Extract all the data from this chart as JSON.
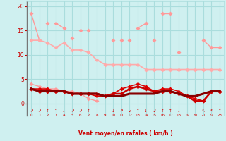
{
  "bg_color": "#cff0f0",
  "grid_color": "#aadddd",
  "xlabel": "Vent moyen/en rafales ( km/h )",
  "ylim": [
    0,
    21
  ],
  "xlim": [
    -0.5,
    23.5
  ],
  "yticks": [
    0,
    5,
    10,
    15,
    20
  ],
  "xticks": [
    0,
    1,
    2,
    3,
    4,
    5,
    6,
    7,
    8,
    9,
    10,
    11,
    12,
    13,
    14,
    15,
    16,
    17,
    18,
    19,
    20,
    21,
    22,
    23
  ],
  "series": [
    {
      "y": [
        18.5,
        13,
        null,
        16.5,
        15.5,
        null,
        15,
        null,
        null,
        null,
        13,
        null,
        13,
        null,
        null,
        13,
        null,
        null,
        10.5,
        null,
        null,
        13,
        11.5,
        11.5
      ],
      "color": "#ff9999",
      "lw": 1.0,
      "ms": 3,
      "marker": "D"
    },
    {
      "y": [
        null,
        null,
        16.5,
        null,
        null,
        13.5,
        null,
        15,
        null,
        null,
        null,
        null,
        null,
        15.5,
        16.5,
        null,
        18.5,
        18.5,
        null,
        null,
        null,
        null,
        null,
        null
      ],
      "color": "#ff9999",
      "lw": 1.0,
      "ms": 3,
      "marker": "D"
    },
    {
      "y": [
        null,
        null,
        null,
        null,
        null,
        null,
        null,
        null,
        null,
        null,
        null,
        13,
        null,
        null,
        null,
        null,
        null,
        null,
        null,
        null,
        null,
        null,
        null,
        null
      ],
      "color": "#ff9999",
      "lw": 1.0,
      "ms": 3,
      "marker": "D"
    },
    {
      "y": [
        13,
        13,
        12.5,
        11.5,
        12.5,
        11,
        11,
        10.5,
        9,
        8,
        8,
        8,
        8,
        8,
        7,
        7,
        7,
        7,
        7,
        7,
        7,
        7,
        7,
        7
      ],
      "color": "#ffaaaa",
      "lw": 1.2,
      "ms": 3,
      "marker": "D"
    },
    {
      "y": [
        4,
        3.5,
        3,
        3,
        2.5,
        2.5,
        2,
        1,
        0.5,
        null,
        null,
        null,
        null,
        null,
        null,
        null,
        null,
        null,
        null,
        null,
        null,
        null,
        null,
        null
      ],
      "color": "#ff9999",
      "lw": 1.0,
      "ms": 3,
      "marker": "D"
    },
    {
      "y": [
        3,
        3,
        3,
        2.5,
        2.5,
        2,
        2,
        2,
        1.5,
        1.5,
        2,
        3,
        3.5,
        4,
        3.5,
        2.5,
        3,
        3,
        2.5,
        1.5,
        1,
        0.5,
        2.5,
        2.5
      ],
      "color": "#dd0000",
      "lw": 1.2,
      "ms": 3,
      "marker": "D"
    },
    {
      "y": [
        3,
        2.5,
        2.5,
        2.5,
        2.5,
        2,
        2,
        2,
        2,
        1.5,
        2,
        2,
        3,
        3.5,
        3,
        2.5,
        2.5,
        2.5,
        2,
        1.5,
        0.5,
        0.5,
        2.5,
        2.5
      ],
      "color": "#cc0000",
      "lw": 1.8,
      "ms": 3,
      "marker": "D"
    },
    {
      "y": [
        3,
        2.5,
        2.5,
        2.5,
        2.5,
        2,
        2,
        2,
        2,
        1.5,
        1.5,
        1.5,
        2,
        2,
        2,
        2,
        2.5,
        2.5,
        2,
        1.5,
        1.5,
        2,
        2.5,
        2.5
      ],
      "color": "#880000",
      "lw": 2.2,
      "ms": 0,
      "marker": "none"
    }
  ],
  "arrow_labels": [
    "r",
    "r",
    "u",
    "u",
    "d",
    "r",
    "r",
    "u",
    "",
    "",
    "d",
    "r",
    "s",
    "u",
    "d",
    "s",
    "u",
    "u",
    "d",
    "",
    "",
    "k",
    "k",
    "u"
  ],
  "arrow_color": "#dd0000"
}
